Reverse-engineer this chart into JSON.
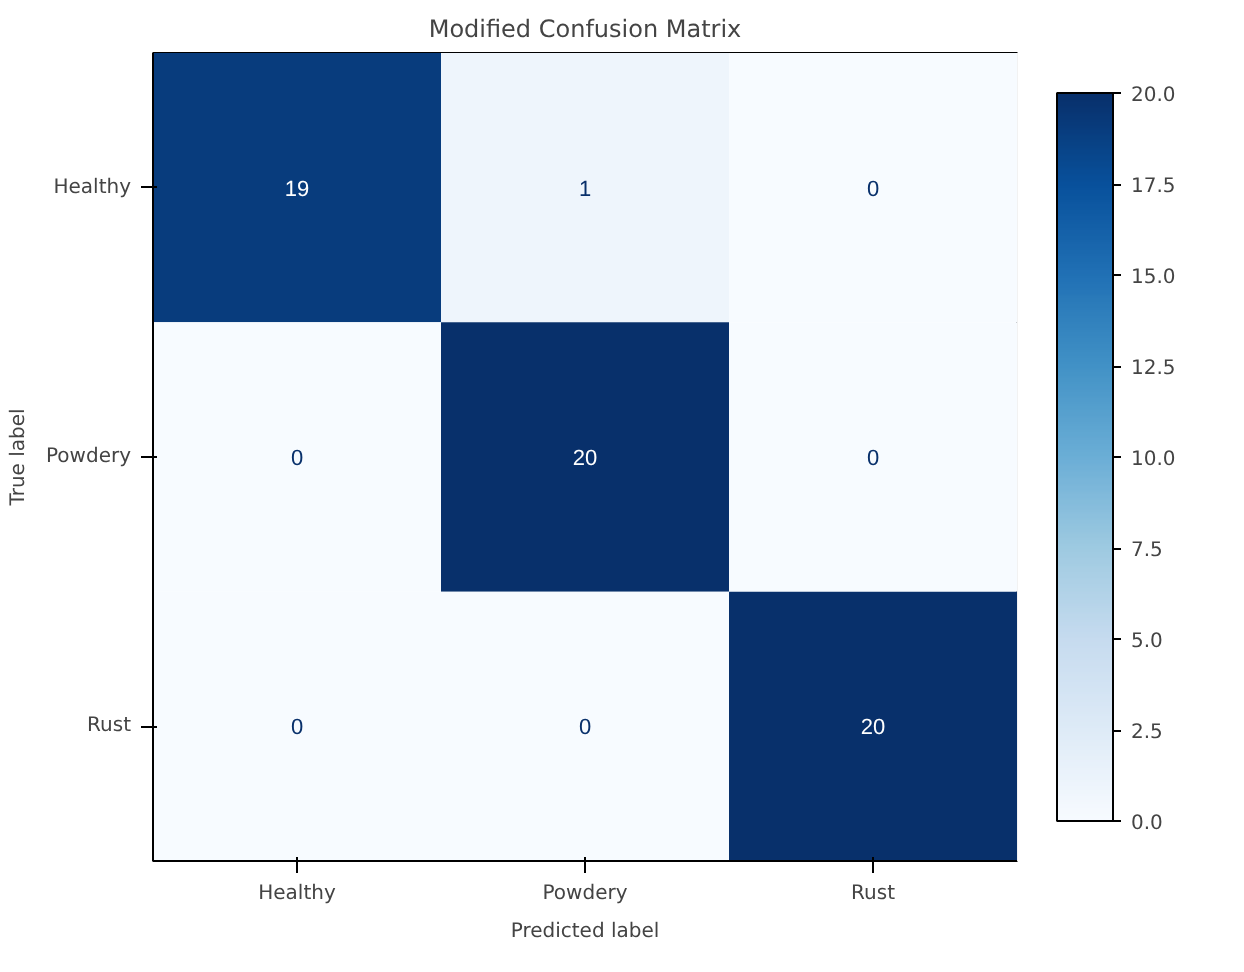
{
  "chart_data": {
    "type": "heatmap",
    "title": "Modified Confusion Matrix",
    "xlabel": "Predicted label",
    "ylabel": "True label",
    "categories": [
      "Healthy",
      "Powdery",
      "Rust"
    ],
    "y_categories": [
      "Healthy",
      "Powdery",
      "Rust"
    ],
    "cells": [
      [
        19,
        1,
        0
      ],
      [
        0,
        20,
        0
      ],
      [
        0,
        0,
        20
      ]
    ],
    "data_labels": true,
    "clim": [
      0,
      20
    ],
    "cticks": [
      {
        "value": 0,
        "label": "0.0"
      },
      {
        "value": 2.5,
        "label": "2.5"
      },
      {
        "value": 5,
        "label": "5.0"
      },
      {
        "value": 7.5,
        "label": "7.5"
      },
      {
        "value": 10,
        "label": "10.0"
      },
      {
        "value": 12.5,
        "label": "12.5"
      },
      {
        "value": 15,
        "label": "15.0"
      },
      {
        "value": 17.5,
        "label": "17.5"
      },
      {
        "value": 20,
        "label": "20.0"
      }
    ],
    "grid": false
  }
}
